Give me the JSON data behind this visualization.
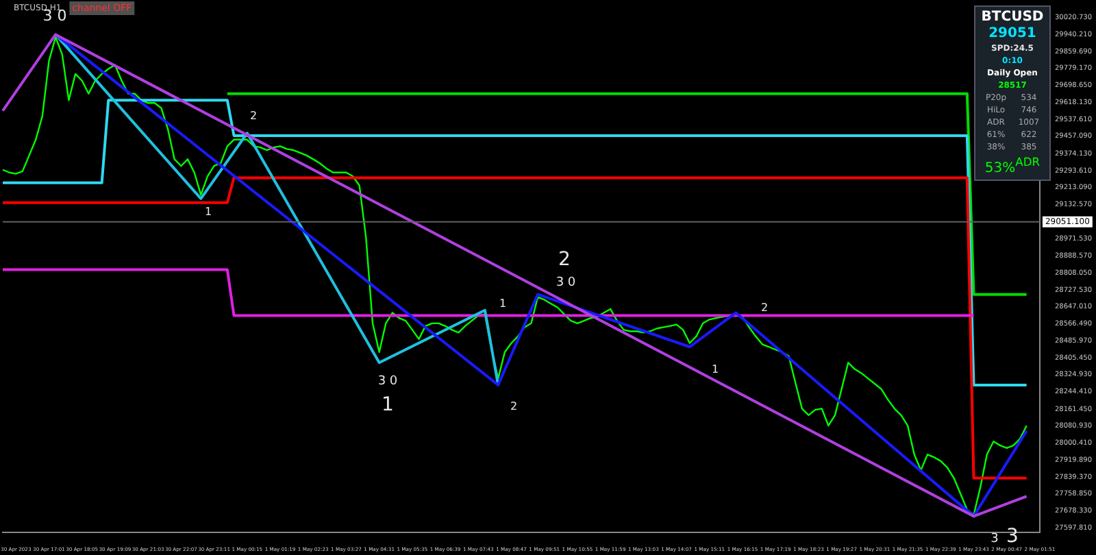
{
  "chart_data": {
    "type": "line",
    "title": "BTCUSD,H1",
    "subtitle": "channel OFF",
    "categories": [
      null,
      null,
      "30 Apr 2023",
      null,
      null,
      null,
      null,
      "30 Apr 17:01",
      null,
      null,
      null,
      null,
      "30 Apr 18:05",
      null,
      null,
      null,
      null,
      "30 Apr 19:09",
      null,
      null,
      null,
      null,
      "30 Apr 21:03",
      null,
      null,
      null,
      null,
      "30 Apr 22:07",
      null,
      null,
      null,
      null,
      "30 Apr 23:11",
      null,
      null,
      null,
      null,
      "1 May 00:15",
      null,
      null,
      null,
      null,
      "1 May 01:19",
      null,
      null,
      null,
      null,
      "1 May 02:23",
      null,
      null,
      null,
      null,
      "1 May 03:27",
      null,
      null,
      null,
      null,
      "1 May 04:31",
      null,
      null,
      null,
      null,
      "1 May 05:35",
      null,
      null,
      null,
      null,
      "1 May 06:39",
      null,
      null,
      null,
      null,
      "1 May 07:43",
      null,
      null,
      null,
      null,
      "1 May 08:47",
      null,
      null,
      null,
      null,
      "1 May 09:51",
      null,
      null,
      null,
      null,
      "1 May 10:55",
      null,
      null,
      null,
      null,
      "1 May 11:59",
      null,
      null,
      null,
      null,
      "1 May 13:03",
      null,
      null,
      null,
      null,
      "1 May 14:07",
      null,
      null,
      null,
      null,
      "1 May 15:11",
      null,
      null,
      null,
      null,
      "1 May 16:15",
      null,
      null,
      null,
      null,
      "1 May 17:19",
      null,
      null,
      null,
      null,
      "1 May 18:23",
      null,
      null,
      null,
      null,
      "1 May 19:27",
      null,
      null,
      null,
      null,
      "1 May 20:31",
      null,
      null,
      null,
      null,
      "1 May 21:35",
      null,
      null,
      null,
      null,
      "1 May 22:39",
      null,
      null,
      null,
      null,
      "1 May 23:43",
      null,
      null,
      null,
      null,
      "2 May 00:47",
      null,
      null,
      null,
      null,
      "2 May 01:51"
    ],
    "series": [
      {
        "color": "#00ff00",
        "values": [
          29298,
          29285,
          29279,
          29291,
          29366,
          29441,
          29553,
          29815,
          29927,
          29846,
          29628,
          29753,
          29721,
          29659,
          29721,
          29753,
          29777,
          29796,
          29721,
          29659,
          29659,
          29628,
          29615,
          29615,
          29591,
          29491,
          29348,
          29316,
          29348,
          29285,
          29179,
          29267,
          29316,
          29329,
          29410,
          29441,
          29441,
          29441,
          29410,
          29404,
          29391,
          29404,
          29410,
          29397,
          29391,
          29379,
          29366,
          29348,
          29329,
          29304,
          29285,
          29285,
          29285,
          29267,
          29223,
          28974,
          28569,
          28432,
          28569,
          28619,
          28594,
          28581,
          28538,
          28494,
          28556,
          28569,
          28569,
          28556,
          28538,
          28525,
          28556,
          28581,
          28606,
          28612,
          28444,
          28307,
          28432,
          28475,
          28507,
          28550,
          28569,
          28693,
          28681,
          28662,
          28644,
          28612,
          28581,
          28569,
          28581,
          28594,
          28600,
          28619,
          28637,
          28581,
          28538,
          28531,
          28531,
          28525,
          28531,
          28544,
          28550,
          28556,
          28563,
          28538,
          28475,
          28507,
          28569,
          28587,
          28594,
          28600,
          28606,
          28612,
          28600,
          28550,
          28507,
          28469,
          28457,
          28444,
          28432,
          28413,
          28288,
          28164,
          28133,
          28158,
          28164,
          28083,
          28133,
          28257,
          28382,
          28351,
          28332,
          28307,
          28282,
          28257,
          28207,
          28164,
          28133,
          28083,
          27946,
          27871,
          27946,
          27933,
          27915,
          27884,
          27834,
          27759,
          27684,
          27659,
          27790,
          27946,
          28008,
          27989,
          27977,
          27989,
          28020,
          28083,
          null,
          null
        ]
      },
      {
        "color": "#b040e0",
        "values": [
          29578,
          null,
          null,
          null,
          null,
          null,
          null,
          null,
          29940,
          null,
          null,
          null,
          null,
          null,
          null,
          null,
          null,
          null,
          null,
          null,
          null,
          null,
          null,
          null,
          null,
          null,
          null,
          null,
          null,
          null,
          null,
          null,
          null,
          null,
          null,
          null,
          null,
          null,
          null,
          null,
          null,
          null,
          null,
          null,
          null,
          null,
          null,
          null,
          null,
          null,
          null,
          null,
          null,
          null,
          null,
          null,
          null,
          null,
          null,
          null,
          null,
          null,
          null,
          null,
          null,
          null,
          null,
          null,
          null,
          null,
          null,
          null,
          null,
          null,
          null,
          null,
          null,
          null,
          null,
          null,
          null,
          null,
          null,
          null,
          null,
          null,
          null,
          null,
          null,
          null,
          null,
          null,
          null,
          null,
          null,
          null,
          null,
          null,
          null,
          null,
          null,
          null,
          null,
          null,
          null,
          null,
          null,
          null,
          null,
          null,
          null,
          null,
          null,
          null,
          null,
          null,
          null,
          null,
          null,
          null,
          null,
          null,
          null,
          null,
          null,
          null,
          null,
          null,
          null,
          null,
          null,
          null,
          null,
          null,
          null,
          null,
          null,
          null,
          null,
          null,
          null,
          null,
          null,
          null,
          null,
          null,
          null,
          27653,
          null,
          null,
          null,
          null,
          null,
          null,
          null,
          27747,
          null,
          null
        ]
      },
      {
        "color": "#1a1aff",
        "values": [
          null,
          null,
          null,
          null,
          null,
          null,
          null,
          null,
          29940,
          null,
          null,
          null,
          null,
          null,
          null,
          null,
          null,
          null,
          null,
          null,
          null,
          null,
          null,
          null,
          null,
          null,
          null,
          null,
          null,
          null,
          null,
          null,
          null,
          null,
          null,
          null,
          null,
          null,
          null,
          null,
          null,
          null,
          null,
          null,
          null,
          null,
          null,
          null,
          null,
          null,
          null,
          null,
          null,
          null,
          null,
          null,
          null,
          null,
          null,
          null,
          null,
          null,
          null,
          null,
          null,
          null,
          null,
          null,
          null,
          null,
          null,
          null,
          null,
          null,
          null,
          28276,
          null,
          null,
          null,
          null,
          null,
          28706,
          null,
          null,
          null,
          null,
          null,
          null,
          null,
          null,
          null,
          null,
          null,
          null,
          null,
          null,
          null,
          null,
          null,
          null,
          null,
          null,
          null,
          null,
          28457,
          null,
          null,
          null,
          null,
          null,
          null,
          28619,
          null,
          null,
          null,
          null,
          null,
          null,
          null,
          null,
          null,
          null,
          null,
          null,
          null,
          null,
          null,
          null,
          null,
          null,
          null,
          null,
          null,
          null,
          null,
          null,
          null,
          null,
          null,
          null,
          null,
          null,
          null,
          null,
          null,
          null,
          null,
          27653,
          null,
          null,
          null,
          null,
          null,
          null,
          null,
          28058,
          null,
          null
        ]
      },
      {
        "color": "#20c0e0",
        "values": [
          null,
          null,
          null,
          null,
          null,
          null,
          null,
          null,
          29940,
          null,
          null,
          null,
          null,
          null,
          null,
          null,
          null,
          null,
          null,
          null,
          null,
          null,
          null,
          null,
          null,
          null,
          null,
          null,
          null,
          null,
          29161,
          null,
          null,
          null,
          null,
          null,
          null,
          29472,
          null,
          null,
          null,
          null,
          null,
          null,
          null,
          null,
          null,
          null,
          null,
          null,
          null,
          null,
          null,
          null,
          null,
          null,
          null,
          28382,
          null,
          null,
          null,
          null,
          null,
          null,
          null,
          null,
          null,
          null,
          null,
          null,
          null,
          null,
          null,
          28631,
          null,
          28276,
          null,
          null,
          null,
          null,
          null,
          null,
          null,
          null,
          null,
          null,
          null,
          null,
          null,
          null,
          null,
          null,
          null,
          null,
          null,
          null,
          null,
          null,
          null,
          null,
          null,
          null,
          null,
          null,
          null,
          null,
          null,
          null,
          null,
          null,
          null,
          null,
          null,
          null,
          null,
          null,
          null,
          null,
          null,
          null,
          null,
          null,
          null,
          null,
          null,
          null,
          null,
          null,
          null,
          null,
          null,
          null,
          null,
          null,
          null,
          null,
          null,
          null,
          null,
          null,
          null,
          null,
          null,
          null,
          null,
          null,
          null,
          null,
          null,
          null,
          null,
          null,
          null,
          null,
          null,
          null,
          null,
          null
        ]
      },
      {
        "color": "#e020e0",
        "values": [
          28824,
          null,
          null,
          null,
          null,
          null,
          null,
          null,
          null,
          null,
          null,
          null,
          null,
          null,
          null,
          null,
          null,
          null,
          null,
          null,
          null,
          null,
          null,
          null,
          null,
          null,
          null,
          null,
          null,
          null,
          null,
          null,
          null,
          null,
          28824,
          28606,
          null,
          null,
          null,
          null,
          null,
          null,
          null,
          null,
          null,
          null,
          null,
          null,
          null,
          null,
          null,
          null,
          null,
          null,
          null,
          null,
          null,
          null,
          null,
          null,
          null,
          null,
          null,
          null,
          null,
          null,
          null,
          null,
          null,
          null,
          null,
          null,
          null,
          null,
          null,
          null,
          null,
          null,
          null,
          null,
          null,
          null,
          null,
          null,
          null,
          null,
          null,
          null,
          null,
          null,
          null,
          null,
          null,
          null,
          null,
          null,
          null,
          null,
          null,
          null,
          null,
          null,
          null,
          null,
          null,
          null,
          null,
          null,
          null,
          null,
          null,
          null,
          null,
          null,
          null,
          null,
          null,
          null,
          null,
          null,
          null,
          null,
          null,
          null,
          null,
          null,
          null,
          null,
          null,
          null,
          null,
          null,
          null,
          null,
          null,
          null,
          null,
          null,
          null,
          null,
          null,
          null,
          null,
          null,
          null,
          null,
          null,
          28606,
          null,
          null,
          null,
          null,
          null,
          null,
          null,
          null,
          null,
          null
        ]
      },
      {
        "color": "#ff0000",
        "values": [
          29142,
          null,
          null,
          null,
          null,
          null,
          null,
          null,
          null,
          null,
          null,
          null,
          null,
          null,
          null,
          null,
          null,
          null,
          null,
          null,
          null,
          null,
          null,
          null,
          null,
          null,
          null,
          null,
          null,
          null,
          null,
          null,
          null,
          null,
          29142,
          29260,
          null,
          null,
          null,
          null,
          null,
          null,
          null,
          null,
          null,
          null,
          null,
          null,
          null,
          null,
          null,
          null,
          null,
          null,
          null,
          null,
          null,
          null,
          null,
          null,
          null,
          null,
          null,
          null,
          null,
          null,
          null,
          null,
          null,
          null,
          null,
          null,
          null,
          null,
          null,
          null,
          null,
          null,
          null,
          null,
          null,
          null,
          null,
          null,
          null,
          null,
          null,
          null,
          null,
          null,
          null,
          null,
          null,
          null,
          null,
          null,
          null,
          null,
          null,
          null,
          null,
          null,
          null,
          null,
          null,
          null,
          null,
          null,
          null,
          null,
          null,
          null,
          null,
          null,
          null,
          null,
          null,
          null,
          null,
          null,
          null,
          null,
          null,
          null,
          null,
          null,
          null,
          null,
          null,
          null,
          null,
          null,
          null,
          null,
          null,
          null,
          null,
          null,
          null,
          null,
          null,
          null,
          null,
          null,
          null,
          null,
          29260,
          27834,
          null,
          null,
          null,
          null,
          null,
          null,
          null,
          27834,
          null,
          null
        ]
      },
      {
        "color": "#30d8f0",
        "values": [
          29236,
          null,
          null,
          null,
          null,
          null,
          null,
          null,
          null,
          null,
          null,
          null,
          null,
          null,
          null,
          29236,
          29628,
          null,
          null,
          null,
          null,
          null,
          null,
          null,
          null,
          null,
          null,
          null,
          null,
          null,
          null,
          null,
          null,
          null,
          29628,
          29460,
          null,
          null,
          null,
          null,
          null,
          null,
          null,
          null,
          null,
          null,
          null,
          null,
          null,
          null,
          null,
          null,
          null,
          null,
          null,
          null,
          null,
          null,
          null,
          null,
          null,
          null,
          null,
          null,
          null,
          null,
          null,
          null,
          null,
          null,
          null,
          null,
          null,
          null,
          null,
          null,
          null,
          null,
          null,
          null,
          null,
          null,
          null,
          null,
          null,
          null,
          null,
          null,
          null,
          null,
          null,
          null,
          null,
          null,
          null,
          null,
          null,
          null,
          null,
          null,
          null,
          null,
          null,
          null,
          null,
          null,
          null,
          null,
          null,
          null,
          null,
          null,
          null,
          null,
          null,
          null,
          null,
          null,
          null,
          null,
          null,
          null,
          null,
          null,
          null,
          null,
          null,
          null,
          null,
          null,
          null,
          null,
          null,
          null,
          null,
          null,
          null,
          null,
          null,
          null,
          null,
          null,
          null,
          null,
          null,
          null,
          29460,
          28276,
          null,
          null,
          null,
          null,
          null,
          null,
          null,
          28276,
          null,
          null
        ]
      },
      {
        "color": "#00dd00",
        "values": [
          null,
          null,
          null,
          null,
          null,
          null,
          null,
          null,
          null,
          null,
          null,
          null,
          null,
          null,
          null,
          null,
          null,
          null,
          null,
          null,
          null,
          null,
          null,
          null,
          null,
          null,
          null,
          null,
          null,
          null,
          null,
          null,
          null,
          null,
          29659,
          null,
          null,
          null,
          null,
          null,
          null,
          null,
          null,
          null,
          null,
          null,
          null,
          null,
          null,
          null,
          null,
          null,
          null,
          null,
          null,
          null,
          null,
          null,
          null,
          null,
          null,
          null,
          null,
          null,
          null,
          null,
          null,
          null,
          null,
          null,
          null,
          null,
          null,
          null,
          null,
          null,
          null,
          null,
          null,
          null,
          null,
          null,
          null,
          null,
          null,
          null,
          null,
          null,
          null,
          null,
          null,
          null,
          null,
          null,
          null,
          null,
          null,
          null,
          null,
          null,
          null,
          null,
          null,
          null,
          null,
          null,
          null,
          null,
          null,
          null,
          null,
          null,
          null,
          null,
          null,
          null,
          null,
          null,
          null,
          null,
          null,
          null,
          null,
          null,
          null,
          null,
          null,
          null,
          null,
          null,
          null,
          null,
          null,
          null,
          null,
          null,
          null,
          null,
          null,
          null,
          null,
          null,
          null,
          null,
          null,
          null,
          29659,
          28706,
          null,
          null,
          null,
          null,
          null,
          null,
          null,
          28706,
          null,
          null
        ]
      }
    ],
    "ylim": [
      27575,
      30065
    ],
    "yticks": [
      {
        "value": 27597.81,
        "label": "27597.810"
      },
      {
        "value": 27678.33,
        "label": "27678.330"
      },
      {
        "value": 27758.85,
        "label": "27758.850"
      },
      {
        "value": 27839.37,
        "label": "27839.370"
      },
      {
        "value": 27919.89,
        "label": "27919.890"
      },
      {
        "value": 28000.41,
        "label": "28000.410"
      },
      {
        "value": 28080.93,
        "label": "28080.930"
      },
      {
        "value": 28161.45,
        "label": "28161.450"
      },
      {
        "value": 28244.41,
        "label": "28244.410"
      },
      {
        "value": 28324.93,
        "label": "28324.930"
      },
      {
        "value": 28405.45,
        "label": "28405.450"
      },
      {
        "value": 28485.97,
        "label": "28485.970"
      },
      {
        "value": 28566.49,
        "label": "28566.490"
      },
      {
        "value": 28647.01,
        "label": "28647.010"
      },
      {
        "value": 28727.53,
        "label": "28727.530"
      },
      {
        "value": 28808.05,
        "label": "28808.050"
      },
      {
        "value": 28888.57,
        "label": "28888.570"
      },
      {
        "value": 28971.53,
        "label": "28971.530"
      },
      {
        "value": 29132.57,
        "label": "29132.570"
      },
      {
        "value": 29213.09,
        "label": "29213.090"
      },
      {
        "value": 29293.61,
        "label": "29293.610"
      },
      {
        "value": 29374.13,
        "label": "29374.130"
      },
      {
        "value": 29457.09,
        "label": "29457.090"
      },
      {
        "value": 29537.61,
        "label": "29537.610"
      },
      {
        "value": 29618.13,
        "label": "29618.130"
      },
      {
        "value": 29698.65,
        "label": "29698.650"
      },
      {
        "value": 29779.17,
        "label": "29779.170"
      },
      {
        "value": 29859.69,
        "label": "29859.690"
      },
      {
        "value": 29940.21,
        "label": "29940.210"
      },
      {
        "value": 30020.73,
        "label": "30020.730"
      }
    ],
    "ref_lines": [
      {
        "axis": "y",
        "value": 29051.1,
        "label": "29051.100",
        "color": "#606060"
      }
    ],
    "annotations": [
      "3 0",
      "1",
      "2",
      "3 0",
      "1",
      "1",
      "2",
      "2",
      "3 0",
      "1",
      "2",
      "3",
      "3",
      "BTCUSD",
      "29051",
      "SPD:24.5",
      "0:10",
      "Daily Open",
      "28517",
      "P20p",
      "534",
      "HiLo",
      "746",
      "ADR",
      "1007",
      "61%",
      "622",
      "38%",
      "385",
      "53%$^{ADR}$"
    ],
    "grid": false,
    "legend": false,
    "marker": "none",
    "line_style": "solid"
  }
}
